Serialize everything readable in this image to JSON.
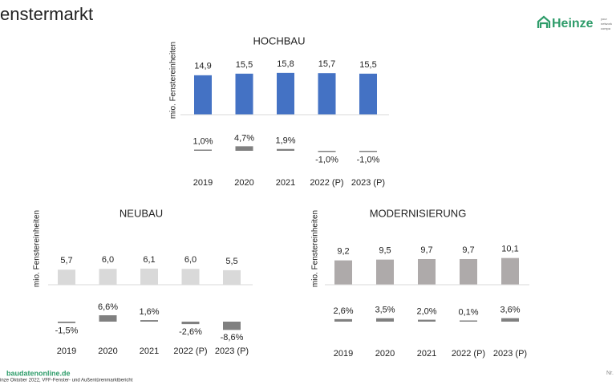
{
  "header": {
    "title": "enstermarkt",
    "logo": "Heinze",
    "logo_tag": [
      "your",
      "network",
      "compa"
    ]
  },
  "footer": {
    "site": "baudatenonline.de",
    "source": "inze Oktober 2022, VFF-Fenster- und Außentürenmarktbericht",
    "page": "Nr."
  },
  "chart_data": [
    {
      "type": "bar",
      "title": "HOCHBAU",
      "y_label": "mio. Fenstereinheiten",
      "categories": [
        "2019",
        "2020",
        "2021",
        "2022 (P)",
        "2023 (P)"
      ],
      "values": [
        14.9,
        15.5,
        15.8,
        15.7,
        15.5
      ],
      "value_labels": [
        "14,9",
        "15,5",
        "15,8",
        "15,7",
        "15,5"
      ],
      "color": "#4472c4",
      "growth": {
        "values": [
          1.0,
          4.7,
          1.9,
          -1.0,
          -1.0
        ],
        "value_labels": [
          "1,0%",
          "4,7%",
          "1,9%",
          "-1,0%",
          "-1,0%"
        ],
        "color": "#808080"
      }
    },
    {
      "type": "bar",
      "title": "NEUBAU",
      "y_label": "mio. Fenstereinheiten",
      "categories": [
        "2019",
        "2020",
        "2021",
        "2022 (P)",
        "2023 (P)"
      ],
      "values": [
        5.7,
        6.0,
        6.1,
        6.0,
        5.5
      ],
      "value_labels": [
        "5,7",
        "6,0",
        "6,1",
        "6,0",
        "5,5"
      ],
      "color": "#d9d9d9",
      "growth": {
        "values": [
          -1.5,
          6.6,
          1.6,
          -2.6,
          -8.6
        ],
        "value_labels": [
          "-1,5%",
          "6,6%",
          "1,6%",
          "-2,6%",
          "-8,6%"
        ],
        "color": "#808080"
      }
    },
    {
      "type": "bar",
      "title": "MODERNISIERUNG",
      "y_label": "mio. Fenstereinheiten",
      "categories": [
        "2019",
        "2020",
        "2021",
        "2022 (P)",
        "2023 (P)"
      ],
      "values": [
        9.2,
        9.5,
        9.7,
        9.7,
        10.1
      ],
      "value_labels": [
        "9,2",
        "9,5",
        "9,7",
        "9,7",
        "10,1"
      ],
      "color": "#aeaaaa",
      "growth": {
        "values": [
          2.6,
          3.5,
          2.0,
          0.1,
          3.6
        ],
        "value_labels": [
          "2,6%",
          "3,5%",
          "2,0%",
          "0,1%",
          "3,6%"
        ],
        "color": "#808080"
      }
    }
  ]
}
